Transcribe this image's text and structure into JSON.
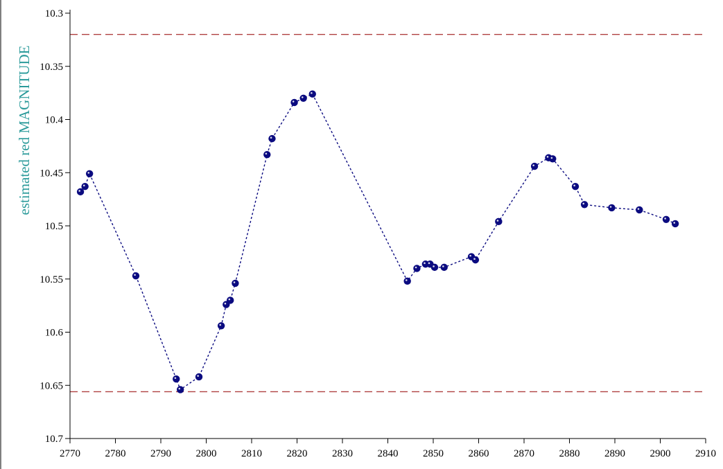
{
  "chart_data": {
    "type": "scatter",
    "title": "",
    "xlabel": "",
    "ylabel": "estimated red MAGNITUDE",
    "xlim": [
      2770,
      2910
    ],
    "ylim": [
      10.3,
      10.7
    ],
    "y_inverted": true,
    "x_ticks": [
      2770,
      2780,
      2790,
      2800,
      2810,
      2820,
      2830,
      2840,
      2850,
      2860,
      2870,
      2880,
      2890,
      2900,
      2910
    ],
    "y_ticks": [
      10.3,
      10.35,
      10.4,
      10.45,
      10.5,
      10.55,
      10.6,
      10.65,
      10.7
    ],
    "y_tick_labels": [
      "10.3",
      "10.35",
      "10.4",
      "10.45",
      "10.5",
      "10.55",
      "10.6",
      "10.65",
      "10.7"
    ],
    "grid": false,
    "reference_lines": [
      10.32,
      10.656
    ],
    "series": [
      {
        "points": [
          [
            2772.3,
            10.468
          ],
          [
            2773.3,
            10.463
          ],
          [
            2774.3,
            10.451
          ],
          [
            2784.5,
            10.547
          ],
          [
            2793.4,
            10.644
          ],
          [
            2794.3,
            10.654
          ],
          [
            2798.4,
            10.642
          ],
          [
            2803.3,
            10.594
          ],
          [
            2804.4,
            10.574
          ],
          [
            2805.3,
            10.57
          ],
          [
            2806.4,
            10.554
          ],
          [
            2813.4,
            10.433
          ],
          [
            2814.5,
            10.418
          ],
          [
            2819.4,
            10.384
          ],
          [
            2821.4,
            10.38
          ],
          [
            2823.4,
            10.376
          ],
          [
            2844.3,
            10.552
          ],
          [
            2846.4,
            10.54
          ],
          [
            2848.3,
            10.536
          ],
          [
            2849.3,
            10.536
          ],
          [
            2850.3,
            10.539
          ],
          [
            2852.4,
            10.539
          ],
          [
            2858.4,
            10.529
          ],
          [
            2859.3,
            10.532
          ],
          [
            2864.4,
            10.496
          ],
          [
            2872.3,
            10.444
          ],
          [
            2875.4,
            10.436
          ],
          [
            2876.3,
            10.437
          ],
          [
            2881.3,
            10.463
          ],
          [
            2883.3,
            10.48
          ],
          [
            2889.3,
            10.483
          ],
          [
            2895.4,
            10.485
          ],
          [
            2901.3,
            10.494
          ],
          [
            2903.3,
            10.498
          ]
        ]
      }
    ],
    "colors": {
      "points": "#0b0b80",
      "connector": "#0b0b80",
      "reference_lines": "#b04040",
      "ylabel": "#2a9a9a",
      "axes": "#000000"
    }
  }
}
